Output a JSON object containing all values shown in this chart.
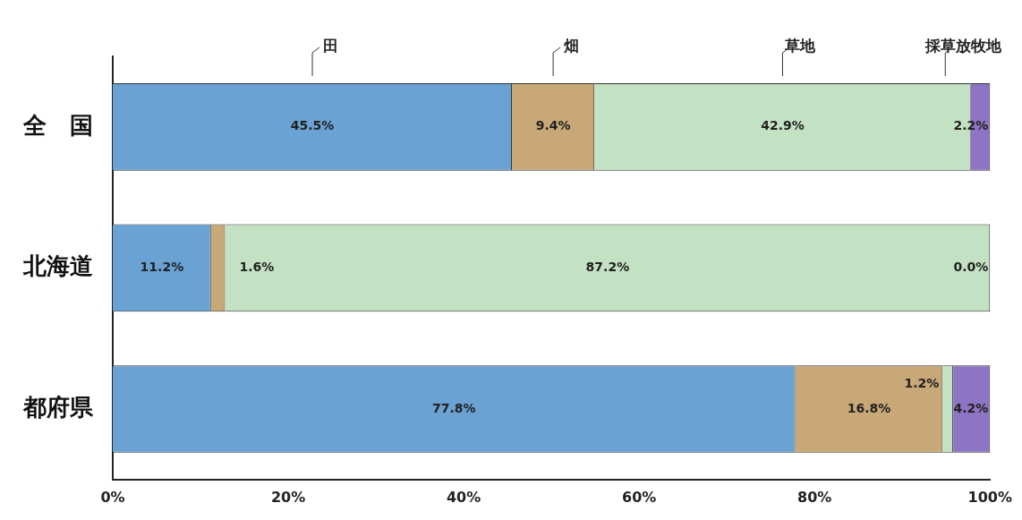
{
  "chart_data": {
    "type": "bar",
    "orientation": "horizontal",
    "stacked": true,
    "categories": [
      "全　国",
      "北海道",
      "都府県"
    ],
    "series": [
      {
        "name": "田",
        "color": "#6aa2d3",
        "values": [
          45.5,
          11.2,
          77.8
        ],
        "value_labels": [
          "45.5%",
          "11.2%",
          "77.8%"
        ]
      },
      {
        "name": "畑",
        "color": "#c9a878",
        "values": [
          9.4,
          1.6,
          16.8
        ],
        "value_labels": [
          "9.4%",
          "1.6%",
          "16.8%"
        ]
      },
      {
        "name": "草地",
        "color": "#c3e2c3",
        "values": [
          42.9,
          87.2,
          1.2
        ],
        "value_labels": [
          "42.9%",
          "87.2%",
          "1.2%"
        ]
      },
      {
        "name": "採草放牧地",
        "color": "#8e74c4",
        "values": [
          2.2,
          0.0,
          4.2
        ],
        "value_labels": [
          "2.2%",
          "0.0%",
          "4.2%"
        ]
      }
    ],
    "xlim": [
      0,
      100
    ],
    "xticks": [
      {
        "value": 0,
        "label": "0%"
      },
      {
        "value": 20,
        "label": "20%"
      },
      {
        "value": 40,
        "label": "40%"
      },
      {
        "value": 60,
        "label": "60%"
      },
      {
        "value": 80,
        "label": "80%"
      },
      {
        "value": 100,
        "label": "100%"
      }
    ],
    "grid": false,
    "legend": false
  }
}
